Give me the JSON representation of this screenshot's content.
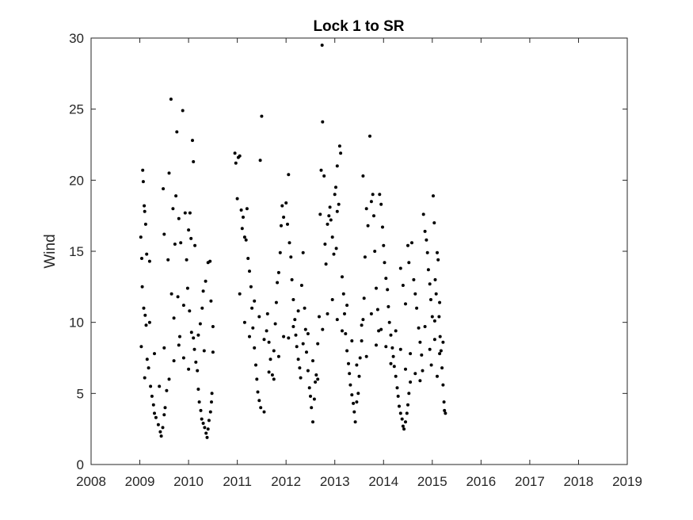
{
  "chart_data": {
    "type": "scatter",
    "title": "Lock 1 to SR",
    "xlabel": "",
    "ylabel": "Wind",
    "xlim": [
      2008,
      2019
    ],
    "ylim": [
      0,
      30
    ],
    "xticks": [
      "2008",
      "2009",
      "2010",
      "2011",
      "2012",
      "2013",
      "2014",
      "2015",
      "2016",
      "2017",
      "2018",
      "2019"
    ],
    "yticks": [
      "0",
      "5",
      "10",
      "15",
      "20",
      "25",
      "30"
    ],
    "grid": false,
    "marker_color": "#000000",
    "axis_color": "#262626",
    "points": [
      [
        2009.02,
        16.0
      ],
      [
        2009.04,
        14.5
      ],
      [
        2009.06,
        20.7
      ],
      [
        2009.07,
        19.9
      ],
      [
        2009.09,
        18.2
      ],
      [
        2009.1,
        17.8
      ],
      [
        2009.12,
        16.9
      ],
      [
        2009.14,
        14.8
      ],
      [
        2009.2,
        14.3
      ],
      [
        2009.05,
        12.5
      ],
      [
        2009.08,
        11.0
      ],
      [
        2009.11,
        10.5
      ],
      [
        2009.13,
        9.8
      ],
      [
        2009.03,
        8.3
      ],
      [
        2009.15,
        7.4
      ],
      [
        2009.18,
        6.8
      ],
      [
        2009.22,
        5.5
      ],
      [
        2009.25,
        4.8
      ],
      [
        2009.28,
        4.2
      ],
      [
        2009.3,
        3.6
      ],
      [
        2009.33,
        3.3
      ],
      [
        2009.38,
        2.8
      ],
      [
        2009.42,
        2.3
      ],
      [
        2009.44,
        2.0
      ],
      [
        2009.47,
        2.6
      ],
      [
        2009.5,
        3.5
      ],
      [
        2009.52,
        4.0
      ],
      [
        2009.55,
        5.2
      ],
      [
        2009.48,
        19.4
      ],
      [
        2009.5,
        16.2
      ],
      [
        2009.58,
        14.4
      ],
      [
        2009.6,
        20.5
      ],
      [
        2009.64,
        25.7
      ],
      [
        2009.68,
        18.0
      ],
      [
        2009.72,
        15.5
      ],
      [
        2009.74,
        18.9
      ],
      [
        2009.76,
        23.4
      ],
      [
        2009.8,
        17.3
      ],
      [
        2009.84,
        15.6
      ],
      [
        2009.88,
        24.9
      ],
      [
        2009.93,
        17.7
      ],
      [
        2009.96,
        14.4
      ],
      [
        2010.0,
        16.5
      ],
      [
        2010.03,
        17.7
      ],
      [
        2010.05,
        15.9
      ],
      [
        2010.08,
        22.8
      ],
      [
        2010.1,
        21.3
      ],
      [
        2010.13,
        15.4
      ],
      [
        2009.65,
        12.0
      ],
      [
        2009.7,
        10.3
      ],
      [
        2009.78,
        11.8
      ],
      [
        2009.82,
        9.0
      ],
      [
        2009.9,
        11.2
      ],
      [
        2009.98,
        12.4
      ],
      [
        2010.02,
        10.8
      ],
      [
        2010.06,
        9.3
      ],
      [
        2010.12,
        8.1
      ],
      [
        2010.15,
        7.2
      ],
      [
        2010.18,
        6.6
      ],
      [
        2010.2,
        5.3
      ],
      [
        2010.22,
        4.4
      ],
      [
        2010.25,
        3.8
      ],
      [
        2010.27,
        3.2
      ],
      [
        2010.3,
        2.9
      ],
      [
        2010.33,
        2.6
      ],
      [
        2010.36,
        2.2
      ],
      [
        2010.38,
        1.9
      ],
      [
        2010.4,
        2.5
      ],
      [
        2010.42,
        3.1
      ],
      [
        2010.45,
        3.7
      ],
      [
        2010.47,
        4.4
      ],
      [
        2010.48,
        5.0
      ],
      [
        2010.4,
        14.2
      ],
      [
        2010.44,
        14.3
      ],
      [
        2010.35,
        12.9
      ],
      [
        2010.46,
        11.5
      ],
      [
        2010.5,
        9.7
      ],
      [
        2010.5,
        7.9
      ],
      [
        2010.28,
        11.0
      ],
      [
        2010.3,
        12.2
      ],
      [
        2010.24,
        9.9
      ],
      [
        2010.32,
        8.0
      ],
      [
        2010.95,
        21.9
      ],
      [
        2010.97,
        21.2
      ],
      [
        2011.02,
        21.6
      ],
      [
        2011.05,
        21.7
      ],
      [
        2011.0,
        18.7
      ],
      [
        2011.08,
        17.9
      ],
      [
        2011.1,
        16.6
      ],
      [
        2011.12,
        17.4
      ],
      [
        2011.15,
        16.0
      ],
      [
        2011.18,
        15.8
      ],
      [
        2011.2,
        18.0
      ],
      [
        2011.22,
        14.5
      ],
      [
        2011.25,
        13.6
      ],
      [
        2011.28,
        12.5
      ],
      [
        2011.3,
        11.0
      ],
      [
        2011.32,
        9.6
      ],
      [
        2011.35,
        8.2
      ],
      [
        2011.38,
        7.0
      ],
      [
        2011.4,
        6.0
      ],
      [
        2011.42,
        5.1
      ],
      [
        2011.45,
        4.5
      ],
      [
        2011.48,
        4.0
      ],
      [
        2011.55,
        3.7
      ],
      [
        2011.5,
        24.5
      ],
      [
        2011.47,
        21.4
      ],
      [
        2011.6,
        9.4
      ],
      [
        2011.62,
        10.6
      ],
      [
        2011.65,
        8.6
      ],
      [
        2011.68,
        7.4
      ],
      [
        2011.72,
        6.3
      ],
      [
        2011.75,
        8.0
      ],
      [
        2011.78,
        9.9
      ],
      [
        2011.8,
        11.4
      ],
      [
        2011.82,
        12.8
      ],
      [
        2011.85,
        13.5
      ],
      [
        2011.88,
        14.9
      ],
      [
        2011.9,
        16.8
      ],
      [
        2011.92,
        18.2
      ],
      [
        2011.95,
        17.4
      ],
      [
        2012.0,
        18.4
      ],
      [
        2012.03,
        16.9
      ],
      [
        2012.05,
        20.4
      ],
      [
        2012.07,
        15.6
      ],
      [
        2012.1,
        14.6
      ],
      [
        2012.12,
        13.0
      ],
      [
        2012.15,
        11.6
      ],
      [
        2012.18,
        10.2
      ],
      [
        2012.2,
        9.1
      ],
      [
        2012.22,
        8.3
      ],
      [
        2012.25,
        7.4
      ],
      [
        2012.28,
        6.8
      ],
      [
        2012.3,
        6.1
      ],
      [
        2012.35,
        14.9
      ],
      [
        2012.32,
        12.6
      ],
      [
        2012.38,
        11.0
      ],
      [
        2012.4,
        9.5
      ],
      [
        2012.42,
        7.9
      ],
      [
        2012.45,
        6.6
      ],
      [
        2012.48,
        5.4
      ],
      [
        2012.5,
        4.8
      ],
      [
        2012.52,
        4.0
      ],
      [
        2012.55,
        3.0
      ],
      [
        2012.58,
        4.6
      ],
      [
        2012.6,
        5.8
      ],
      [
        2012.62,
        6.3
      ],
      [
        2012.65,
        8.5
      ],
      [
        2012.68,
        10.4
      ],
      [
        2012.7,
        17.6
      ],
      [
        2012.72,
        20.7
      ],
      [
        2012.74,
        29.5
      ],
      [
        2012.75,
        24.1
      ],
      [
        2012.78,
        20.3
      ],
      [
        2012.8,
        15.5
      ],
      [
        2012.82,
        14.1
      ],
      [
        2012.85,
        16.9
      ],
      [
        2012.88,
        17.5
      ],
      [
        2012.9,
        18.1
      ],
      [
        2012.92,
        17.2
      ],
      [
        2012.95,
        16.0
      ],
      [
        2012.98,
        14.8
      ],
      [
        2013.0,
        19.0
      ],
      [
        2013.02,
        19.5
      ],
      [
        2013.03,
        15.2
      ],
      [
        2013.05,
        17.8
      ],
      [
        2013.08,
        18.3
      ],
      [
        2013.1,
        22.4
      ],
      [
        2013.12,
        21.9
      ],
      [
        2013.05,
        21.0
      ],
      [
        2013.15,
        13.2
      ],
      [
        2013.18,
        12.0
      ],
      [
        2013.2,
        10.6
      ],
      [
        2013.22,
        9.2
      ],
      [
        2013.25,
        8.0
      ],
      [
        2013.28,
        7.1
      ],
      [
        2013.3,
        6.4
      ],
      [
        2013.32,
        5.6
      ],
      [
        2013.35,
        4.9
      ],
      [
        2013.38,
        4.3
      ],
      [
        2013.4,
        3.7
      ],
      [
        2013.42,
        3.0
      ],
      [
        2013.45,
        4.4
      ],
      [
        2013.48,
        5.0
      ],
      [
        2013.5,
        6.2
      ],
      [
        2013.52,
        7.5
      ],
      [
        2013.55,
        8.7
      ],
      [
        2013.58,
        10.2
      ],
      [
        2013.6,
        11.7
      ],
      [
        2013.62,
        14.6
      ],
      [
        2013.58,
        20.3
      ],
      [
        2013.65,
        18.0
      ],
      [
        2013.68,
        16.8
      ],
      [
        2013.72,
        23.1
      ],
      [
        2013.75,
        18.5
      ],
      [
        2013.78,
        19.0
      ],
      [
        2013.8,
        17.5
      ],
      [
        2013.82,
        15.0
      ],
      [
        2013.85,
        12.4
      ],
      [
        2013.88,
        10.9
      ],
      [
        2013.9,
        9.4
      ],
      [
        2013.92,
        19.0
      ],
      [
        2013.95,
        18.3
      ],
      [
        2013.98,
        16.7
      ],
      [
        2014.0,
        15.4
      ],
      [
        2014.02,
        14.2
      ],
      [
        2014.05,
        13.1
      ],
      [
        2014.08,
        12.3
      ],
      [
        2014.1,
        11.1
      ],
      [
        2014.12,
        10.0
      ],
      [
        2014.15,
        9.1
      ],
      [
        2014.18,
        8.2
      ],
      [
        2014.2,
        7.6
      ],
      [
        2014.22,
        6.9
      ],
      [
        2014.25,
        6.2
      ],
      [
        2014.28,
        5.4
      ],
      [
        2014.3,
        4.8
      ],
      [
        2014.32,
        4.1
      ],
      [
        2014.35,
        3.6
      ],
      [
        2014.38,
        3.2
      ],
      [
        2014.4,
        2.7
      ],
      [
        2014.42,
        2.5
      ],
      [
        2014.45,
        3.0
      ],
      [
        2014.48,
        3.6
      ],
      [
        2014.5,
        4.2
      ],
      [
        2014.52,
        5.0
      ],
      [
        2014.55,
        5.8
      ],
      [
        2014.35,
        13.8
      ],
      [
        2014.4,
        12.6
      ],
      [
        2014.45,
        11.3
      ],
      [
        2014.5,
        15.4
      ],
      [
        2014.52,
        14.2
      ],
      [
        2014.58,
        15.6
      ],
      [
        2014.62,
        13.0
      ],
      [
        2014.65,
        12.0
      ],
      [
        2014.68,
        11.0
      ],
      [
        2014.72,
        9.6
      ],
      [
        2014.75,
        8.6
      ],
      [
        2014.78,
        7.7
      ],
      [
        2014.8,
        6.6
      ],
      [
        2014.82,
        17.6
      ],
      [
        2014.85,
        16.4
      ],
      [
        2014.88,
        15.8
      ],
      [
        2014.9,
        14.9
      ],
      [
        2014.92,
        13.7
      ],
      [
        2014.95,
        12.7
      ],
      [
        2014.97,
        11.6
      ],
      [
        2015.0,
        10.4
      ],
      [
        2015.02,
        18.9
      ],
      [
        2015.04,
        17.0
      ],
      [
        2015.06,
        13.0
      ],
      [
        2015.08,
        12.0
      ],
      [
        2015.1,
        14.9
      ],
      [
        2015.12,
        14.4
      ],
      [
        2015.14,
        10.4
      ],
      [
        2015.16,
        9.0
      ],
      [
        2015.18,
        8.0
      ],
      [
        2015.2,
        6.8
      ],
      [
        2015.22,
        5.6
      ],
      [
        2015.24,
        4.4
      ],
      [
        2015.25,
        3.8
      ],
      [
        2015.27,
        3.6
      ],
      [
        2015.05,
        8.8
      ],
      [
        2015.15,
        7.8
      ],
      [
        2015.22,
        8.6
      ],
      [
        2014.98,
        7.0
      ],
      [
        2015.1,
        6.2
      ],
      [
        2009.1,
        6.1
      ],
      [
        2009.2,
        10.0
      ],
      [
        2009.3,
        7.8
      ],
      [
        2009.4,
        5.5
      ],
      [
        2009.5,
        8.2
      ],
      [
        2009.6,
        6.0
      ],
      [
        2009.7,
        7.3
      ],
      [
        2009.8,
        8.4
      ],
      [
        2009.9,
        7.5
      ],
      [
        2010.0,
        6.7
      ],
      [
        2010.1,
        8.9
      ],
      [
        2010.2,
        9.1
      ],
      [
        2011.05,
        12.0
      ],
      [
        2011.15,
        10.0
      ],
      [
        2011.25,
        9.0
      ],
      [
        2011.35,
        11.5
      ],
      [
        2011.45,
        10.4
      ],
      [
        2011.55,
        8.8
      ],
      [
        2011.65,
        6.5
      ],
      [
        2011.75,
        6.0
      ],
      [
        2011.85,
        7.6
      ],
      [
        2011.95,
        9.0
      ],
      [
        2012.05,
        8.9
      ],
      [
        2012.15,
        9.7
      ],
      [
        2012.25,
        10.8
      ],
      [
        2012.35,
        8.5
      ],
      [
        2012.45,
        9.2
      ],
      [
        2012.55,
        7.3
      ],
      [
        2012.65,
        6.0
      ],
      [
        2012.75,
        9.5
      ],
      [
        2012.85,
        10.6
      ],
      [
        2012.95,
        11.6
      ],
      [
        2013.05,
        10.2
      ],
      [
        2013.15,
        9.4
      ],
      [
        2013.25,
        11.2
      ],
      [
        2013.35,
        8.7
      ],
      [
        2013.45,
        7.0
      ],
      [
        2013.55,
        9.8
      ],
      [
        2013.65,
        7.6
      ],
      [
        2013.75,
        10.6
      ],
      [
        2013.85,
        8.4
      ],
      [
        2013.95,
        9.5
      ],
      [
        2014.05,
        8.3
      ],
      [
        2014.15,
        7.1
      ],
      [
        2014.25,
        9.4
      ],
      [
        2014.35,
        8.1
      ],
      [
        2014.45,
        6.7
      ],
      [
        2014.55,
        7.8
      ],
      [
        2014.65,
        6.4
      ],
      [
        2014.75,
        5.9
      ],
      [
        2014.85,
        9.7
      ],
      [
        2014.95,
        8.1
      ],
      [
        2015.05,
        10.1
      ],
      [
        2015.15,
        11.4
      ]
    ]
  }
}
